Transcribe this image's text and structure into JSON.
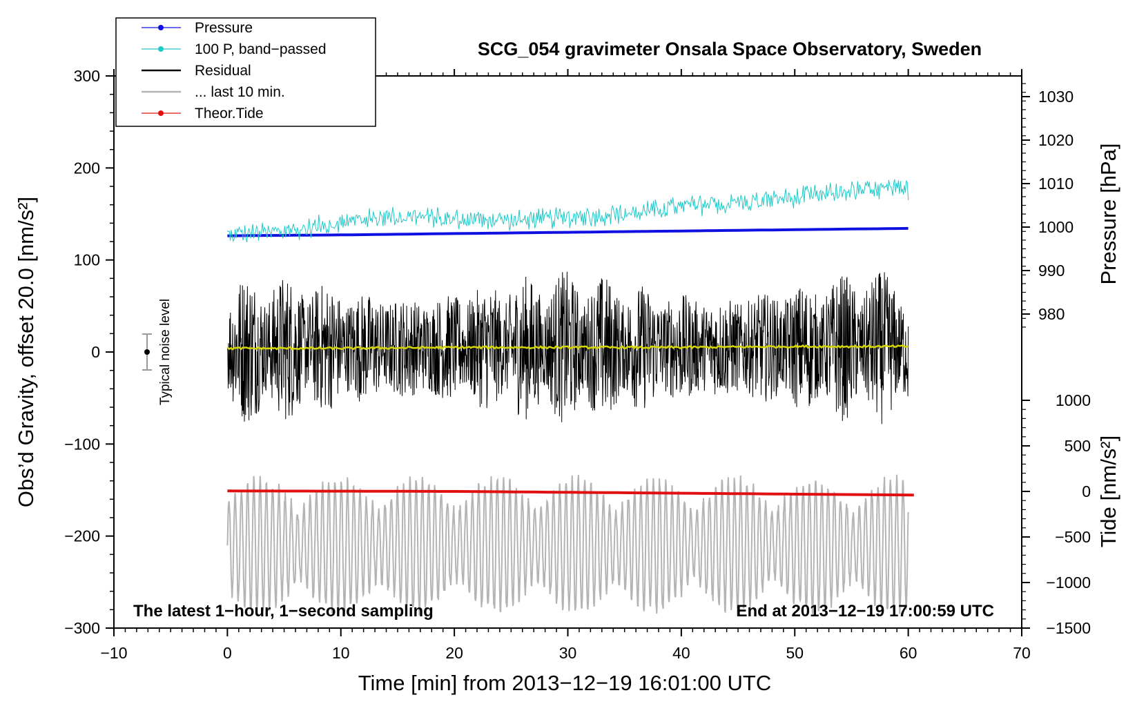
{
  "chart_data": {
    "type": "line",
    "title": "SCG_054 gravimeter Onsala Space Observatory, Sweden",
    "xlabel": "Time [min] from 2013−12−19 16:01:00 UTC",
    "ylabel": "Obs’d Gravity, offset 20.0 [nm/s²]",
    "ylabel_right_top": "Pressure [hPa]",
    "ylabel_right_bottom": "Tide [nm/s²]",
    "xlim": [
      -10,
      70
    ],
    "ylim": [
      -300,
      300
    ],
    "x_ticks": [
      "−10",
      "0",
      "10",
      "20",
      "30",
      "40",
      "50",
      "60",
      "70"
    ],
    "x_tick_values": [
      -10,
      0,
      10,
      20,
      30,
      40,
      50,
      60,
      70
    ],
    "y_ticks": [
      "300",
      "200",
      "100",
      "0",
      "−100",
      "−200",
      "−300"
    ],
    "y_tick_values": [
      300,
      200,
      100,
      0,
      -100,
      -200,
      -300
    ],
    "pressure_axis": {
      "ticks": [
        "1030",
        "1020",
        "1010",
        "1000",
        "990",
        "980"
      ],
      "tick_values": [
        1030,
        1020,
        1010,
        1000,
        990,
        980
      ],
      "range": [
        955,
        1035
      ]
    },
    "tide_axis": {
      "ticks": [
        "1000",
        "500",
        "0",
        "−500",
        "−1000",
        "−1500"
      ],
      "tick_values": [
        1000,
        500,
        0,
        -500,
        -1000,
        -1500
      ],
      "range": [
        -1500,
        1000
      ]
    },
    "legend": {
      "position": "top-left",
      "entries": [
        {
          "label": "Pressure",
          "color": "#1010e0",
          "marker": true
        },
        {
          "label": "100 P, band−passed",
          "color": "#20c8c8",
          "marker": true
        },
        {
          "label": "Residual",
          "color": "#000000",
          "marker": false
        },
        {
          "label": "... last 10 min.",
          "color": "#b4b4b4",
          "marker": false
        },
        {
          "label": "Theor.Tide",
          "color": "#e01010",
          "marker": true
        }
      ]
    },
    "noise_label": "Typical noise level",
    "noise_level": [
      -20,
      20
    ],
    "footer_left": "The latest 1−hour, 1−second sampling",
    "footer_right": "End at 2013−12−19 17:00:59 UTC",
    "series": [
      {
        "name": "Pressure",
        "axis": "pressure",
        "color": "#1010e0",
        "x_range": [
          0,
          60
        ],
        "values": [
          998.0,
          998.2,
          998.5,
          998.8,
          999.1,
          999.4,
          999.7
        ]
      },
      {
        "name": "100 P, band−passed",
        "axis": "gravity",
        "color": "#20c8c8",
        "x_range": [
          0,
          60
        ],
        "values": [
          128,
          130,
          142,
          148,
          145,
          143,
          146,
          150,
          158,
          162,
          168,
          175,
          177
        ]
      },
      {
        "name": "Residual",
        "axis": "gravity",
        "color": "#000000",
        "x_range": [
          0,
          60
        ],
        "amplitude": 60
      },
      {
        "name": "Residual mean",
        "axis": "gravity",
        "color": "#d6d600",
        "x_range": [
          0,
          60
        ],
        "values": [
          4,
          4,
          5,
          5,
          5,
          6,
          6
        ]
      },
      {
        "name": "... last 10 min.",
        "axis": "gravity",
        "color": "#b4b4b4",
        "x_range": [
          0,
          60
        ],
        "center": -210,
        "amplitude": 55
      },
      {
        "name": "Theor.Tide",
        "axis": "tide",
        "color": "#e01010",
        "x_range": [
          0,
          60.5
        ],
        "values": [
          5,
          3,
          0,
          -10,
          -20,
          -30,
          -40
        ]
      }
    ]
  },
  "colors": {
    "pressure": "#1010e0",
    "bandpassed": "#20c8c8",
    "residual": "#000000",
    "residual_mean": "#d6d600",
    "last10": "#b4b4b4",
    "tide": "#e01010"
  }
}
